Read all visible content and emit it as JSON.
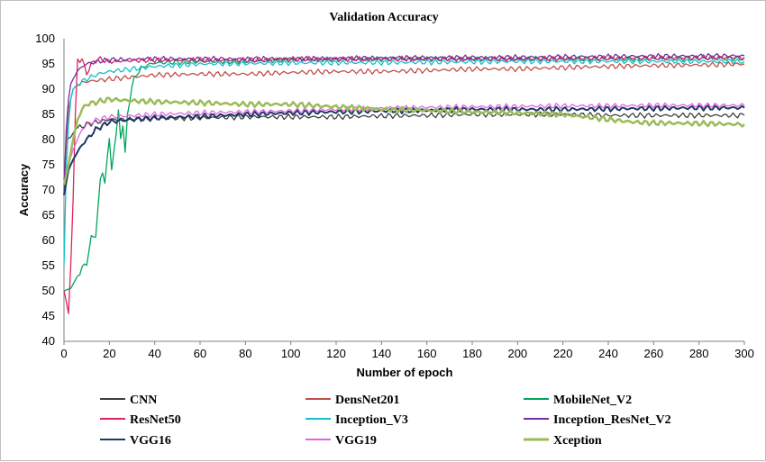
{
  "chart_data": {
    "type": "line",
    "title": "Validation Accuracy",
    "xlabel": "Number of epoch",
    "ylabel": "Accuracy",
    "xlim": [
      0,
      300
    ],
    "ylim": [
      40,
      100
    ],
    "xticks": [
      0,
      20,
      40,
      60,
      80,
      100,
      120,
      140,
      160,
      180,
      200,
      220,
      240,
      260,
      280,
      300
    ],
    "yticks": [
      40,
      45,
      50,
      55,
      60,
      65,
      70,
      75,
      80,
      85,
      90,
      95,
      100
    ],
    "grid": false,
    "legend_position": "bottom",
    "series": [
      {
        "name": "CNN",
        "color": "#404040",
        "points": [
          [
            0,
            69
          ],
          [
            1,
            80
          ],
          [
            3,
            80.5
          ],
          [
            5,
            82
          ],
          [
            7,
            82.5
          ],
          [
            10,
            83
          ],
          [
            15,
            83.5
          ],
          [
            20,
            84
          ],
          [
            30,
            84
          ],
          [
            40,
            84.2
          ],
          [
            60,
            84.3
          ],
          [
            80,
            84.5
          ],
          [
            100,
            84.5
          ],
          [
            120,
            84.5
          ],
          [
            140,
            84.7
          ],
          [
            160,
            84.8
          ],
          [
            180,
            85
          ],
          [
            200,
            85
          ],
          [
            220,
            85
          ],
          [
            240,
            84.8
          ],
          [
            260,
            84.8
          ],
          [
            280,
            84.8
          ],
          [
            300,
            84.8
          ]
        ]
      },
      {
        "name": "DensNet201",
        "color": "#c0504d",
        "points": [
          [
            0,
            72
          ],
          [
            2,
            86
          ],
          [
            4,
            90
          ],
          [
            6,
            91
          ],
          [
            10,
            91.5
          ],
          [
            20,
            92
          ],
          [
            40,
            92.8
          ],
          [
            60,
            93
          ],
          [
            80,
            93
          ],
          [
            100,
            93.3
          ],
          [
            120,
            93.5
          ],
          [
            140,
            93.5
          ],
          [
            160,
            93.7
          ],
          [
            180,
            94
          ],
          [
            200,
            94
          ],
          [
            220,
            94.3
          ],
          [
            240,
            94.5
          ],
          [
            260,
            94.7
          ],
          [
            280,
            94.8
          ],
          [
            300,
            95
          ]
        ]
      },
      {
        "name": "MobileNet_V2",
        "color": "#00a65a",
        "points": [
          [
            0,
            50
          ],
          [
            3,
            50.5
          ],
          [
            6,
            53
          ],
          [
            8,
            54.5
          ],
          [
            10,
            55.5
          ],
          [
            12,
            60.5
          ],
          [
            14,
            61
          ],
          [
            16,
            72
          ],
          [
            17,
            73.5
          ],
          [
            18,
            71.5
          ],
          [
            19,
            76
          ],
          [
            20,
            80
          ],
          [
            21,
            74
          ],
          [
            22,
            78
          ],
          [
            23,
            81
          ],
          [
            24,
            85.5
          ],
          [
            25,
            80.5
          ],
          [
            26,
            83
          ],
          [
            27,
            77
          ],
          [
            28,
            85
          ],
          [
            29,
            88
          ],
          [
            30,
            90.5
          ],
          [
            31,
            92
          ],
          [
            32,
            93
          ],
          [
            34,
            94
          ],
          [
            36,
            94.7
          ],
          [
            40,
            95.2
          ],
          [
            60,
            95.5
          ],
          [
            80,
            95.5
          ],
          [
            100,
            95.8
          ],
          [
            150,
            96
          ],
          [
            200,
            96
          ],
          [
            250,
            96
          ],
          [
            300,
            96.1
          ]
        ]
      },
      {
        "name": "ResNet50",
        "color": "#e0245e",
        "points": [
          [
            0,
            50
          ],
          [
            1,
            48
          ],
          [
            2,
            45.5
          ],
          [
            3,
            55
          ],
          [
            4,
            68
          ],
          [
            5,
            85
          ],
          [
            6,
            96
          ],
          [
            7,
            95.5
          ],
          [
            8,
            96
          ],
          [
            10,
            93
          ],
          [
            12,
            95
          ],
          [
            15,
            96
          ],
          [
            20,
            95.5
          ],
          [
            40,
            95.8
          ],
          [
            60,
            95.8
          ],
          [
            80,
            95.8
          ],
          [
            100,
            96
          ],
          [
            150,
            96
          ],
          [
            200,
            96
          ],
          [
            250,
            96.2
          ],
          [
            300,
            96.3
          ]
        ]
      },
      {
        "name": "Inception_V3",
        "color": "#17becf",
        "points": [
          [
            0,
            55
          ],
          [
            1,
            74
          ],
          [
            2,
            83
          ],
          [
            3,
            88
          ],
          [
            4,
            90
          ],
          [
            6,
            91
          ],
          [
            10,
            92
          ],
          [
            15,
            93
          ],
          [
            20,
            93.5
          ],
          [
            30,
            94
          ],
          [
            40,
            94.5
          ],
          [
            60,
            95
          ],
          [
            80,
            95.1
          ],
          [
            100,
            95.2
          ],
          [
            150,
            95.3
          ],
          [
            200,
            95.5
          ],
          [
            250,
            95.5
          ],
          [
            300,
            95.5
          ]
        ]
      },
      {
        "name": "Inception_ResNet_V2",
        "color": "#7030a0",
        "points": [
          [
            0,
            70
          ],
          [
            1,
            82
          ],
          [
            2,
            88
          ],
          [
            3,
            91
          ],
          [
            4,
            92
          ],
          [
            6,
            93.5
          ],
          [
            8,
            94.5
          ],
          [
            10,
            95
          ],
          [
            15,
            95.5
          ],
          [
            20,
            95.8
          ],
          [
            40,
            96
          ],
          [
            60,
            96
          ],
          [
            80,
            96
          ],
          [
            100,
            96
          ],
          [
            150,
            96.2
          ],
          [
            200,
            96.3
          ],
          [
            250,
            96.5
          ],
          [
            300,
            96.6
          ]
        ]
      },
      {
        "name": "VGG16",
        "color": "#1f3864",
        "points": [
          [
            0,
            69
          ],
          [
            2,
            74
          ],
          [
            4,
            76
          ],
          [
            6,
            77.5
          ],
          [
            8,
            79
          ],
          [
            10,
            80
          ],
          [
            12,
            81
          ],
          [
            14,
            82
          ],
          [
            16,
            82.5
          ],
          [
            18,
            83
          ],
          [
            20,
            83.5
          ],
          [
            30,
            84
          ],
          [
            40,
            84.3
          ],
          [
            60,
            84.6
          ],
          [
            80,
            85
          ],
          [
            100,
            85.3
          ],
          [
            120,
            85.5
          ],
          [
            140,
            85.7
          ],
          [
            160,
            85.8
          ],
          [
            180,
            86
          ],
          [
            200,
            86
          ],
          [
            220,
            86
          ],
          [
            240,
            86.1
          ],
          [
            260,
            86.2
          ],
          [
            280,
            86.3
          ],
          [
            300,
            86.3
          ]
        ]
      },
      {
        "name": "VGG19",
        "color": "#e066e0",
        "points": [
          [
            0,
            71
          ],
          [
            2,
            75
          ],
          [
            4,
            78
          ],
          [
            6,
            80
          ],
          [
            8,
            82
          ],
          [
            10,
            83
          ],
          [
            15,
            84
          ],
          [
            20,
            84.5
          ],
          [
            40,
            85
          ],
          [
            60,
            85.3
          ],
          [
            80,
            85.5
          ],
          [
            100,
            85.7
          ],
          [
            120,
            86
          ],
          [
            140,
            86.2
          ],
          [
            160,
            86.4
          ],
          [
            180,
            86.5
          ],
          [
            200,
            86.6
          ],
          [
            220,
            86.7
          ],
          [
            240,
            86.7
          ],
          [
            260,
            86.8
          ],
          [
            280,
            86.8
          ],
          [
            300,
            86.8
          ]
        ]
      },
      {
        "name": "Xception",
        "color": "#9bbb59",
        "points": [
          [
            0,
            71
          ],
          [
            2,
            75
          ],
          [
            4,
            80
          ],
          [
            6,
            84
          ],
          [
            8,
            86
          ],
          [
            10,
            87
          ],
          [
            15,
            87.5
          ],
          [
            20,
            88
          ],
          [
            30,
            87.7
          ],
          [
            40,
            87.5
          ],
          [
            60,
            87.3
          ],
          [
            80,
            87
          ],
          [
            100,
            87
          ],
          [
            120,
            86.5
          ],
          [
            140,
            86
          ],
          [
            160,
            85.8
          ],
          [
            180,
            85.5
          ],
          [
            200,
            85.3
          ],
          [
            220,
            85
          ],
          [
            230,
            84.5
          ],
          [
            240,
            84
          ],
          [
            250,
            83.5
          ],
          [
            260,
            83.3
          ],
          [
            280,
            83.2
          ],
          [
            300,
            83
          ]
        ]
      }
    ]
  }
}
